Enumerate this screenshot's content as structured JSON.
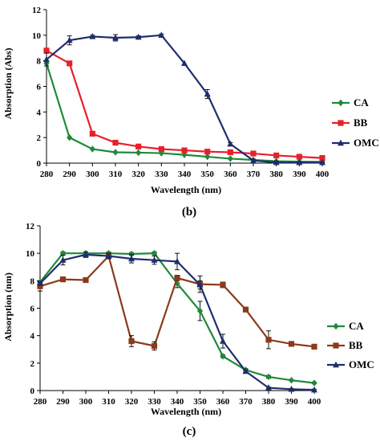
{
  "chart_data": [
    {
      "type": "line",
      "caption": "(b)",
      "xlabel": "Wavelength (nm)",
      "ylabel": "Absorption (Abs)",
      "xlim": [
        280,
        400
      ],
      "ylim": [
        0,
        12
      ],
      "x_ticks": [
        "280",
        "290",
        "300",
        "310",
        "320",
        "330",
        "340",
        "350",
        "360",
        "370",
        "380",
        "390",
        "400"
      ],
      "y_ticks": [
        "0",
        "2",
        "4",
        "6",
        "8",
        "10",
        "12"
      ],
      "grid": false,
      "legend": "right",
      "x": [
        280,
        290,
        300,
        310,
        320,
        330,
        340,
        350,
        360,
        370,
        380,
        390,
        400
      ],
      "series": [
        {
          "name": "CA",
          "color": "#1f8a3a",
          "marker": "diamond",
          "values": [
            7.8,
            2.0,
            1.1,
            0.85,
            0.82,
            0.78,
            0.65,
            0.5,
            0.35,
            0.25,
            0.15,
            0.12,
            0.1
          ]
        },
        {
          "name": "BB",
          "color": "#e8202a",
          "marker": "square",
          "values": [
            8.8,
            7.8,
            2.3,
            1.6,
            1.3,
            1.1,
            1.0,
            0.9,
            0.85,
            0.75,
            0.6,
            0.5,
            0.4
          ]
        },
        {
          "name": "OMC",
          "color": "#1f2d6e",
          "marker": "triangle",
          "values": [
            8.1,
            9.6,
            9.9,
            9.8,
            9.85,
            10.0,
            7.8,
            5.4,
            1.5,
            0.2,
            0.05,
            0.05,
            0.05
          ],
          "errors": [
            0.5,
            0.35,
            0.1,
            0.25,
            0.1,
            0.1,
            0,
            0.35,
            0.1,
            0.1,
            0.1,
            0.05,
            0.05
          ]
        }
      ]
    },
    {
      "type": "line",
      "caption": "(c)",
      "xlabel": "Wavelength (nm)",
      "ylabel": "Absorption (nm)",
      "xlim": [
        280,
        400
      ],
      "ylim": [
        0,
        12
      ],
      "x_ticks": [
        "280",
        "290",
        "300",
        "310",
        "320",
        "330",
        "340",
        "350",
        "360",
        "370",
        "380",
        "390",
        "400"
      ],
      "y_ticks": [
        "0",
        "2",
        "4",
        "6",
        "8",
        "10",
        "12"
      ],
      "grid": false,
      "legend": "right",
      "x": [
        280,
        290,
        300,
        310,
        320,
        330,
        340,
        350,
        360,
        370,
        380,
        390,
        400
      ],
      "series": [
        {
          "name": "CA",
          "color": "#1f8a3a",
          "marker": "diamond",
          "values": [
            7.9,
            10.0,
            10.0,
            10.0,
            9.95,
            10.0,
            7.8,
            5.8,
            2.5,
            1.5,
            1.0,
            0.75,
            0.55
          ],
          "errors": [
            0.1,
            0.1,
            0.1,
            0.1,
            0.1,
            0.1,
            0.3,
            0.7,
            0.1,
            0.1,
            0.1,
            0.05,
            0.05
          ]
        },
        {
          "name": "BB",
          "color": "#8b3a1a",
          "marker": "square",
          "values": [
            7.6,
            8.1,
            8.05,
            9.8,
            3.6,
            3.25,
            8.2,
            7.75,
            7.7,
            5.9,
            3.7,
            3.4,
            3.2
          ],
          "errors": [
            0.35,
            0.1,
            0.1,
            0.2,
            0.4,
            0.3,
            0.2,
            0.6,
            0.2,
            0.1,
            0.65,
            0.15,
            0.1
          ]
        },
        {
          "name": "OMC",
          "color": "#1f2d6e",
          "marker": "triangle",
          "values": [
            7.8,
            9.5,
            9.9,
            9.8,
            9.6,
            9.5,
            9.4,
            7.7,
            3.6,
            1.4,
            0.2,
            0.1,
            0.05
          ],
          "errors": [
            0.1,
            0.35,
            0.2,
            0.2,
            0.3,
            0.3,
            0.6,
            0.3,
            0.5,
            0.1,
            0.05,
            0.05,
            0.05
          ]
        }
      ]
    }
  ]
}
